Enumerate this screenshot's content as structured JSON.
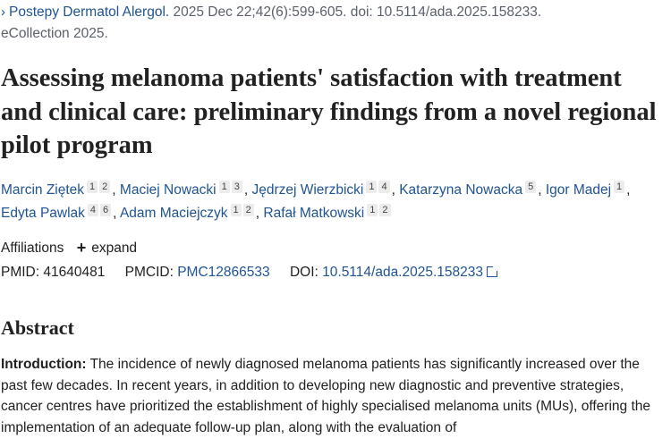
{
  "citation": {
    "chevron": "›",
    "journal": "Postepy Dermatol Alergol.",
    "rest": " 2025 Dec 22;42(6):599-605. doi: 10.5114/ada.2025.158233.",
    "line2": "eCollection 2025."
  },
  "title": "Assessing melanoma patients' satisfaction with treatment and clinical care: preliminary findings from a novel regional pilot program",
  "authors": [
    {
      "name": "Marcin Ziętek",
      "aff": [
        "1",
        "2"
      ]
    },
    {
      "name": "Maciej Nowacki",
      "aff": [
        "1",
        "3"
      ]
    },
    {
      "name": "Jędrzej Wierzbicki",
      "aff": [
        "1",
        "4"
      ]
    },
    {
      "name": "Katarzyna Nowacka",
      "aff": [
        "5"
      ]
    },
    {
      "name": "Igor Madej",
      "aff": [
        "1"
      ]
    },
    {
      "name": "Edyta Pawlak",
      "aff": [
        "4",
        "6"
      ]
    },
    {
      "name": "Adam Maciejczyk",
      "aff": [
        "1",
        "2"
      ]
    },
    {
      "name": "Rafał Matkowski",
      "aff": [
        "1",
        "2"
      ]
    }
  ],
  "affiliations": {
    "label": "Affiliations",
    "expand": "expand"
  },
  "ids": {
    "pmid_label": "PMID:",
    "pmid": "41640481",
    "pmcid_label": "PMCID:",
    "pmcid": "PMC12866533",
    "doi_label": "DOI:",
    "doi": "10.5114/ada.2025.158233"
  },
  "abstract": {
    "heading": "Abstract",
    "intro_label": "Introduction:",
    "intro_text": " The incidence of newly diagnosed melanoma patients has significantly increased over the past few decades. In recent years, in addition to developing new diagnostic and preventive strategies, cancer centres have prioritized the establishment of highly specialised melanoma units (MUs), offering the implementation of an adequate follow-up plan, along with the evaluation of"
  }
}
